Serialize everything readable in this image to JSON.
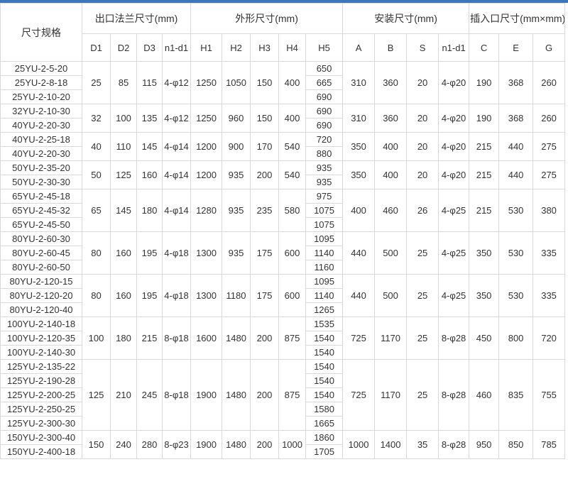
{
  "page": {
    "accent_color": "#3b76b8",
    "border_color": "#d9d9d9",
    "text_color": "#333333",
    "background_color": "#ffffff"
  },
  "table": {
    "spec_header": "尺寸规格",
    "column_groups": [
      {
        "label": "出口法兰尺寸(mm)",
        "span": 4
      },
      {
        "label": "外形尺寸(mm)",
        "span": 5
      },
      {
        "label": "安装尺寸(mm)",
        "span": 4
      },
      {
        "label": "插入口尺寸(mm×mm)",
        "span": 3
      }
    ],
    "sub_headers": [
      "D1",
      "D2",
      "D3",
      "n1-d1",
      "H1",
      "H2",
      "H3",
      "H4",
      "H5",
      "A",
      "B",
      "S",
      "n1-d1",
      "C",
      "E",
      "G"
    ],
    "groups": [
      {
        "shared_left": [
          "25",
          "85",
          "115",
          "4-φ12",
          "1250",
          "1050",
          "150",
          "400"
        ],
        "rows": [
          {
            "spec": "25YU-2-5-20",
            "H5": "650"
          },
          {
            "spec": "25YU-2-8-18",
            "H5": "665"
          },
          {
            "spec": "25YU-2-10-20",
            "H5": "690"
          }
        ],
        "shared_right": [
          "310",
          "360",
          "20",
          "4-φ20",
          "190",
          "368",
          "260"
        ]
      },
      {
        "shared_left": [
          "32",
          "100",
          "135",
          "4-φ12",
          "1250",
          "960",
          "150",
          "400"
        ],
        "rows": [
          {
            "spec": "32YU-2-10-30",
            "H5": "690"
          },
          {
            "spec": "40YU-2-20-30",
            "H5": "690"
          }
        ],
        "shared_right": [
          "310",
          "360",
          "20",
          "4-φ20",
          "190",
          "368",
          "260"
        ]
      },
      {
        "shared_left": [
          "40",
          "110",
          "145",
          "4-φ14",
          "1200",
          "900",
          "170",
          "540"
        ],
        "rows": [
          {
            "spec": "40YU-2-25-18",
            "H5": "720"
          },
          {
            "spec": "40YU-2-20-30",
            "H5": "880"
          }
        ],
        "shared_right": [
          "350",
          "400",
          "20",
          "4-φ20",
          "215",
          "440",
          "275"
        ]
      },
      {
        "shared_left": [
          "50",
          "125",
          "160",
          "4-φ14",
          "1200",
          "935",
          "200",
          "540"
        ],
        "rows": [
          {
            "spec": "50YU-2-35-20",
            "H5": "935"
          },
          {
            "spec": "50YU-2-30-30",
            "H5": "935"
          }
        ],
        "shared_right": [
          "350",
          "400",
          "20",
          "4-φ20",
          "215",
          "440",
          "275"
        ]
      },
      {
        "shared_left": [
          "65",
          "145",
          "180",
          "4-φ14",
          "1280",
          "935",
          "235",
          "580"
        ],
        "rows": [
          {
            "spec": "65YU-2-45-18",
            "H5": "975"
          },
          {
            "spec": "65YU-2-45-32",
            "H5": "1075"
          },
          {
            "spec": "65YU-2-45-50",
            "H5": "1075"
          }
        ],
        "shared_right": [
          "400",
          "460",
          "26",
          "4-φ25",
          "215",
          "530",
          "380"
        ]
      },
      {
        "shared_left": [
          "80",
          "160",
          "195",
          "4-φ18",
          "1300",
          "935",
          "175",
          "600"
        ],
        "rows": [
          {
            "spec": "80YU-2-60-30",
            "H5": "1095"
          },
          {
            "spec": "80YU-2-60-45",
            "H5": "1140"
          },
          {
            "spec": "80YU-2-60-50",
            "H5": "1160"
          }
        ],
        "shared_right": [
          "440",
          "500",
          "25",
          "4-φ25",
          "350",
          "530",
          "335"
        ]
      },
      {
        "shared_left": [
          "80",
          "160",
          "195",
          "4-φ18",
          "1300",
          "1180",
          "175",
          "600"
        ],
        "rows": [
          {
            "spec": "80YU-2-120-15",
            "H5": "1095"
          },
          {
            "spec": "80YU-2-120-20",
            "H5": "1140"
          },
          {
            "spec": "80YU-2-120-40",
            "H5": "1265"
          }
        ],
        "shared_right": [
          "440",
          "500",
          "25",
          "4-φ25",
          "350",
          "530",
          "335"
        ]
      },
      {
        "shared_left": [
          "100",
          "180",
          "215",
          "8-φ18",
          "1600",
          "1480",
          "200",
          "875"
        ],
        "rows": [
          {
            "spec": "100YU-2-140-18",
            "H5": "1535"
          },
          {
            "spec": "100YU-2-120-35",
            "H5": "1540"
          },
          {
            "spec": "100YU-2-140-30",
            "H5": "1540"
          }
        ],
        "shared_right": [
          "725",
          "1170",
          "25",
          "8-φ28",
          "450",
          "800",
          "720"
        ]
      },
      {
        "shared_left": [
          "125",
          "210",
          "245",
          "8-φ18",
          "1900",
          "1480",
          "200",
          "875"
        ],
        "rows": [
          {
            "spec": "125YU-2-135-22",
            "H5": "1540"
          },
          {
            "spec": "125YU-2-190-28",
            "H5": "1540"
          },
          {
            "spec": "125YU-2-200-25",
            "H5": "1540"
          },
          {
            "spec": "125YU-2-250-25",
            "H5": "1580"
          },
          {
            "spec": "125YU-2-300-30",
            "H5": "1665"
          }
        ],
        "shared_right": [
          "725",
          "1170",
          "25",
          "8-φ28",
          "460",
          "835",
          "755"
        ]
      },
      {
        "shared_left": [
          "150",
          "240",
          "280",
          "8-φ23",
          "1900",
          "1480",
          "200",
          "1000"
        ],
        "rows": [
          {
            "spec": "150YU-2-300-40",
            "H5": "1860"
          },
          {
            "spec": "150YU-2-400-18",
            "H5": "1705"
          }
        ],
        "shared_right": [
          "1000",
          "1400",
          "35",
          "8-φ28",
          "950",
          "850",
          "785"
        ]
      }
    ]
  }
}
